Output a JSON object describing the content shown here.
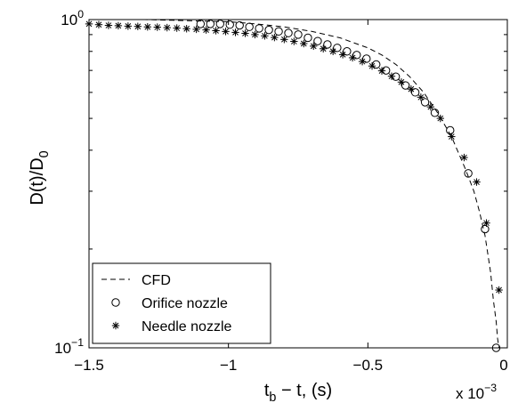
{
  "chart_data": {
    "type": "scatter",
    "title": "",
    "xlabel": "t_b − t, (s)",
    "ylabel": "D(t)/D_0",
    "x_multiplier_label": "x 10^-3",
    "x_scale": "linear",
    "y_scale": "log",
    "xlim": [
      -1.5,
      0
    ],
    "ylim": [
      0.1,
      1
    ],
    "x_ticks": [
      -1.5,
      -1,
      -0.5,
      0
    ],
    "x_tick_labels": [
      "−1.5",
      "−1",
      "−0.5",
      "0"
    ],
    "y_ticks": [
      0.1,
      1
    ],
    "y_tick_labels": [
      "10^-1",
      "10^0"
    ],
    "grid": false,
    "legend_position": "bottom-left",
    "series": [
      {
        "name": "CFD",
        "style": "dashed-line",
        "color": "#000000",
        "x": [
          -1.5,
          -1.4,
          -1.3,
          -1.2,
          -1.1,
          -1.0,
          -0.9,
          -0.8,
          -0.7,
          -0.6,
          -0.5,
          -0.45,
          -0.4,
          -0.35,
          -0.3,
          -0.25,
          -0.2,
          -0.15,
          -0.12,
          -0.1,
          -0.08,
          -0.06,
          -0.05,
          -0.04,
          -0.035,
          -0.03
        ],
        "y": [
          1.0,
          1.0,
          1.0,
          0.995,
          0.99,
          0.985,
          0.97,
          0.95,
          0.92,
          0.88,
          0.82,
          0.78,
          0.73,
          0.67,
          0.6,
          0.52,
          0.44,
          0.35,
          0.3,
          0.26,
          0.22,
          0.17,
          0.14,
          0.12,
          0.107,
          0.1
        ]
      },
      {
        "name": "Orifice nozzle",
        "marker": "circle",
        "color": "#000000",
        "x": [
          -1.1,
          -1.065,
          -1.03,
          -0.995,
          -0.96,
          -0.925,
          -0.89,
          -0.855,
          -0.82,
          -0.785,
          -0.75,
          -0.715,
          -0.68,
          -0.645,
          -0.61,
          -0.575,
          -0.54,
          -0.505,
          -0.47,
          -0.435,
          -0.4,
          -0.365,
          -0.33,
          -0.295,
          -0.26,
          -0.205,
          -0.14,
          -0.08,
          -0.04
        ],
        "y": [
          0.97,
          0.97,
          0.97,
          0.965,
          0.96,
          0.95,
          0.94,
          0.93,
          0.92,
          0.91,
          0.9,
          0.88,
          0.86,
          0.84,
          0.82,
          0.8,
          0.78,
          0.76,
          0.73,
          0.7,
          0.67,
          0.63,
          0.6,
          0.56,
          0.52,
          0.46,
          0.34,
          0.23,
          0.1
        ]
      },
      {
        "name": "Needle nozzle",
        "marker": "asterisk",
        "color": "#000000",
        "x": [
          -1.5,
          -1.465,
          -1.43,
          -1.395,
          -1.36,
          -1.325,
          -1.29,
          -1.255,
          -1.22,
          -1.185,
          -1.15,
          -1.115,
          -1.08,
          -1.045,
          -1.01,
          -0.975,
          -0.94,
          -0.905,
          -0.87,
          -0.835,
          -0.8,
          -0.765,
          -0.73,
          -0.695,
          -0.66,
          -0.625,
          -0.59,
          -0.555,
          -0.52,
          -0.485,
          -0.45,
          -0.415,
          -0.38,
          -0.345,
          -0.31,
          -0.275,
          -0.24,
          -0.2,
          -0.155,
          -0.11,
          -0.075,
          -0.03
        ],
        "y": [
          0.97,
          0.965,
          0.96,
          0.958,
          0.955,
          0.953,
          0.95,
          0.948,
          0.945,
          0.942,
          0.938,
          0.934,
          0.93,
          0.925,
          0.92,
          0.914,
          0.908,
          0.9,
          0.892,
          0.882,
          0.87,
          0.858,
          0.845,
          0.83,
          0.815,
          0.8,
          0.782,
          0.765,
          0.745,
          0.722,
          0.698,
          0.672,
          0.645,
          0.614,
          0.58,
          0.542,
          0.5,
          0.44,
          0.38,
          0.32,
          0.24,
          0.15
        ]
      }
    ]
  }
}
